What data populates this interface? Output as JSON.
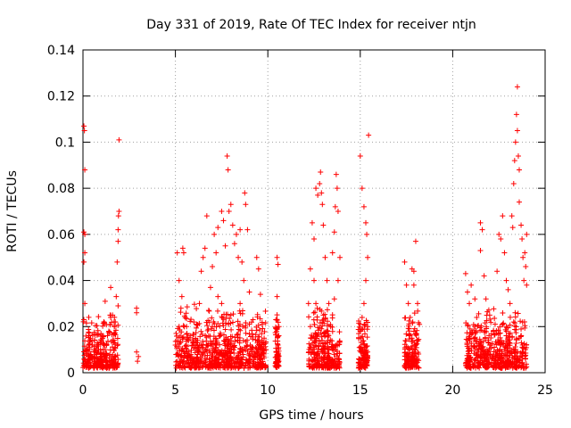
{
  "chart_data": {
    "type": "scatter",
    "title": "Day 331 of 2019, Rate Of TEC Index for receiver ntjn",
    "xlabel": "GPS time / hours",
    "ylabel": "ROTI / TECUs",
    "xlim": [
      0,
      25
    ],
    "ylim": [
      0,
      0.14
    ],
    "xticks": [
      0,
      5,
      10,
      15,
      20,
      25
    ],
    "yticks": [
      0,
      0.02,
      0.04,
      0.06,
      0.08,
      0.1,
      0.12,
      0.14
    ],
    "xtick_labels": [
      "0",
      "5",
      "10",
      "15",
      "20",
      "25"
    ],
    "ytick_labels": [
      "0",
      "0.02",
      "0.04",
      "0.06",
      "0.08",
      "0.1",
      "0.12",
      "0.14"
    ],
    "grid": true,
    "marker": "+",
    "color": "#ff0000",
    "series": [
      {
        "name": "ROTI",
        "points": [
          [
            0.05,
            0.107
          ],
          [
            0.08,
            0.105
          ],
          [
            0.1,
            0.088
          ],
          [
            0.05,
            0.061
          ],
          [
            0.1,
            0.06
          ],
          [
            0.1,
            0.052
          ],
          [
            0.05,
            0.048
          ],
          [
            0.1,
            0.03
          ],
          [
            0.05,
            0.023
          ],
          [
            0.3,
            0.012
          ],
          [
            0.6,
            0.009
          ],
          [
            0.8,
            0.006
          ],
          [
            1.0,
            0.014
          ],
          [
            1.2,
            0.01
          ],
          [
            1.4,
            0.018
          ],
          [
            1.5,
            0.024
          ],
          [
            1.6,
            0.025
          ],
          [
            1.7,
            0.02
          ],
          [
            1.2,
            0.031
          ],
          [
            1.5,
            0.037
          ],
          [
            1.8,
            0.033
          ],
          [
            1.85,
            0.048
          ],
          [
            1.9,
            0.057
          ],
          [
            1.9,
            0.062
          ],
          [
            1.92,
            0.068
          ],
          [
            1.95,
            0.07
          ],
          [
            1.95,
            0.101
          ],
          [
            1.9,
            0.029
          ],
          [
            2.9,
            0.028
          ],
          [
            2.9,
            0.026
          ],
          [
            2.9,
            0.009
          ],
          [
            3.0,
            0.007
          ],
          [
            2.95,
            0.005
          ],
          [
            5.0,
            0.012
          ],
          [
            5.1,
            0.008
          ],
          [
            5.2,
            0.02
          ],
          [
            5.3,
            0.028
          ],
          [
            5.35,
            0.033
          ],
          [
            5.4,
            0.054
          ],
          [
            5.45,
            0.052
          ],
          [
            5.1,
            0.052
          ],
          [
            5.2,
            0.04
          ],
          [
            5.6,
            0.012
          ],
          [
            5.8,
            0.016
          ],
          [
            6.0,
            0.022
          ],
          [
            6.2,
            0.014
          ],
          [
            6.3,
            0.03
          ],
          [
            6.4,
            0.044
          ],
          [
            6.5,
            0.05
          ],
          [
            6.6,
            0.054
          ],
          [
            6.7,
            0.068
          ],
          [
            6.9,
            0.037
          ],
          [
            7.0,
            0.046
          ],
          [
            7.1,
            0.06
          ],
          [
            7.2,
            0.052
          ],
          [
            7.3,
            0.063
          ],
          [
            7.5,
            0.07
          ],
          [
            7.6,
            0.066
          ],
          [
            7.7,
            0.055
          ],
          [
            7.8,
            0.094
          ],
          [
            7.85,
            0.088
          ],
          [
            7.9,
            0.07
          ],
          [
            8.0,
            0.073
          ],
          [
            8.1,
            0.064
          ],
          [
            8.2,
            0.056
          ],
          [
            8.3,
            0.06
          ],
          [
            8.4,
            0.05
          ],
          [
            8.5,
            0.062
          ],
          [
            8.6,
            0.048
          ],
          [
            8.7,
            0.04
          ],
          [
            8.75,
            0.078
          ],
          [
            8.8,
            0.073
          ],
          [
            8.9,
            0.062
          ],
          [
            9.0,
            0.035
          ],
          [
            9.2,
            0.023
          ],
          [
            9.4,
            0.05
          ],
          [
            9.5,
            0.045
          ],
          [
            9.6,
            0.034
          ],
          [
            9.7,
            0.021
          ],
          [
            9.8,
            0.015
          ],
          [
            9.9,
            0.01
          ],
          [
            7.0,
            0.02
          ],
          [
            7.5,
            0.03
          ],
          [
            8.0,
            0.025
          ],
          [
            8.5,
            0.03
          ],
          [
            6.8,
            0.027
          ],
          [
            7.3,
            0.033
          ],
          [
            10.5,
            0.05
          ],
          [
            10.55,
            0.047
          ],
          [
            10.5,
            0.033
          ],
          [
            10.6,
            0.02
          ],
          [
            10.55,
            0.012
          ],
          [
            10.5,
            0.008
          ],
          [
            12.2,
            0.03
          ],
          [
            12.3,
            0.045
          ],
          [
            12.4,
            0.065
          ],
          [
            12.5,
            0.058
          ],
          [
            12.6,
            0.08
          ],
          [
            12.7,
            0.077
          ],
          [
            12.8,
            0.082
          ],
          [
            12.85,
            0.087
          ],
          [
            12.9,
            0.078
          ],
          [
            12.95,
            0.073
          ],
          [
            13.0,
            0.064
          ],
          [
            13.1,
            0.05
          ],
          [
            13.2,
            0.04
          ],
          [
            13.3,
            0.03
          ],
          [
            13.4,
            0.02
          ],
          [
            13.5,
            0.052
          ],
          [
            13.6,
            0.061
          ],
          [
            13.65,
            0.072
          ],
          [
            13.7,
            0.086
          ],
          [
            13.75,
            0.08
          ],
          [
            13.8,
            0.07
          ],
          [
            13.9,
            0.05
          ],
          [
            12.5,
            0.04
          ],
          [
            12.3,
            0.02
          ],
          [
            12.6,
            0.03
          ],
          [
            13.0,
            0.025
          ],
          [
            13.8,
            0.04
          ],
          [
            13.6,
            0.032
          ],
          [
            12.4,
            0.015
          ],
          [
            13.7,
            0.012
          ],
          [
            15.0,
            0.094
          ],
          [
            15.1,
            0.08
          ],
          [
            15.2,
            0.072
          ],
          [
            15.3,
            0.065
          ],
          [
            15.35,
            0.06
          ],
          [
            15.4,
            0.05
          ],
          [
            15.45,
            0.103
          ],
          [
            15.3,
            0.04
          ],
          [
            15.2,
            0.03
          ],
          [
            15.1,
            0.024
          ],
          [
            15.0,
            0.018
          ],
          [
            15.2,
            0.012
          ],
          [
            15.3,
            0.008
          ],
          [
            15.4,
            0.02
          ],
          [
            17.4,
            0.048
          ],
          [
            17.5,
            0.038
          ],
          [
            17.6,
            0.03
          ],
          [
            17.7,
            0.024
          ],
          [
            17.8,
            0.045
          ],
          [
            17.9,
            0.044
          ],
          [
            18.0,
            0.057
          ],
          [
            17.9,
            0.038
          ],
          [
            18.1,
            0.03
          ],
          [
            18.2,
            0.021
          ],
          [
            17.5,
            0.008
          ],
          [
            18.0,
            0.012
          ],
          [
            17.9,
            0.018
          ],
          [
            20.7,
            0.043
          ],
          [
            20.8,
            0.035
          ],
          [
            20.9,
            0.03
          ],
          [
            21.0,
            0.038
          ],
          [
            21.2,
            0.032
          ],
          [
            21.3,
            0.024
          ],
          [
            21.5,
            0.065
          ],
          [
            21.6,
            0.062
          ],
          [
            21.5,
            0.053
          ],
          [
            21.7,
            0.042
          ],
          [
            21.8,
            0.032
          ],
          [
            22.0,
            0.025
          ],
          [
            22.2,
            0.018
          ],
          [
            22.4,
            0.044
          ],
          [
            22.5,
            0.06
          ],
          [
            22.6,
            0.058
          ],
          [
            22.7,
            0.068
          ],
          [
            22.8,
            0.052
          ],
          [
            22.9,
            0.04
          ],
          [
            23.0,
            0.036
          ],
          [
            23.1,
            0.03
          ],
          [
            23.2,
            0.068
          ],
          [
            23.25,
            0.063
          ],
          [
            23.3,
            0.082
          ],
          [
            23.35,
            0.092
          ],
          [
            23.4,
            0.1
          ],
          [
            23.45,
            0.112
          ],
          [
            23.5,
            0.124
          ],
          [
            23.5,
            0.105
          ],
          [
            23.55,
            0.094
          ],
          [
            23.6,
            0.088
          ],
          [
            23.6,
            0.074
          ],
          [
            23.7,
            0.064
          ],
          [
            23.75,
            0.058
          ],
          [
            23.8,
            0.05
          ],
          [
            23.85,
            0.04
          ],
          [
            23.9,
            0.052
          ],
          [
            23.95,
            0.046
          ],
          [
            24.0,
            0.06
          ],
          [
            24.0,
            0.038
          ],
          [
            23.3,
            0.022
          ],
          [
            22.9,
            0.02
          ],
          [
            22.0,
            0.012
          ],
          [
            21.2,
            0.015
          ],
          [
            23.7,
            0.016
          ],
          [
            20.9,
            0.01
          ]
        ]
      }
    ]
  }
}
